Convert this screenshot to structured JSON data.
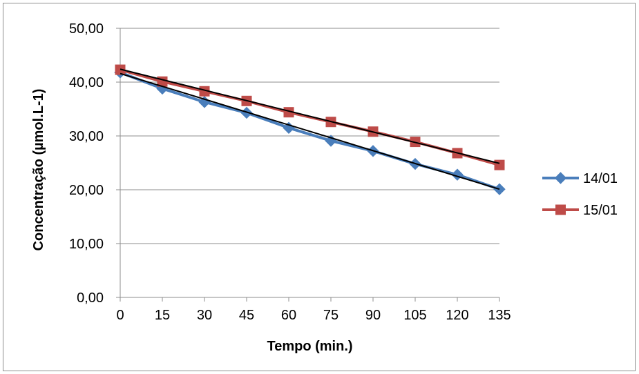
{
  "chart_data": {
    "type": "line",
    "title": "",
    "xlabel": "Tempo (min.)",
    "ylabel": "Concentração (µmol.L-1)",
    "categories": [
      "0",
      "15",
      "30",
      "45",
      "60",
      "75",
      "90",
      "105",
      "120",
      "135"
    ],
    "x": [
      0,
      15,
      30,
      45,
      60,
      75,
      90,
      105,
      120,
      135
    ],
    "ylim": [
      0,
      50
    ],
    "yticks": [
      "0,00",
      "10,00",
      "20,00",
      "30,00",
      "40,00",
      "50,00"
    ],
    "ytick_values": [
      0,
      10,
      20,
      30,
      40,
      50
    ],
    "grid": true,
    "legend_position": "right",
    "series": [
      {
        "name": "14/01",
        "color": "#4a7ebb",
        "marker": "diamond",
        "values": [
          41.8,
          38.8,
          36.3,
          34.3,
          31.5,
          29.1,
          27.2,
          24.8,
          22.8,
          20.1
        ],
        "trendline": {
          "color": "#000000",
          "start": 41.6,
          "end": 20.1
        }
      },
      {
        "name": "15/01",
        "color": "#be4b48",
        "marker": "square",
        "values": [
          42.3,
          40.1,
          38.3,
          36.5,
          34.4,
          32.6,
          30.8,
          28.9,
          26.8,
          24.6
        ],
        "trendline": {
          "color": "#000000",
          "start": 42.4,
          "end": 24.9
        }
      }
    ]
  }
}
